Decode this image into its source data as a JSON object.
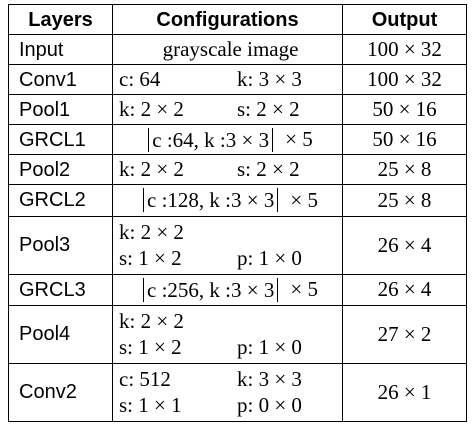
{
  "table": {
    "headers": {
      "layers": "Layers",
      "configurations": "Configurations",
      "output": "Output"
    },
    "rows": [
      {
        "layer": "Input",
        "config_full": "grayscale image",
        "output": "100 × 32"
      },
      {
        "layer": "Conv1",
        "config_a": "c: 64",
        "config_b": "k: 3 × 3",
        "output": "100 × 32"
      },
      {
        "layer": "Pool1",
        "config_a": "k: 2 × 2",
        "config_b": "s: 2 × 2",
        "output": "50 × 16"
      },
      {
        "layer": "GRCL1",
        "config_bracket": "c :64, k :3 × 3",
        "config_mult": "× 5",
        "output": "50 × 16"
      },
      {
        "layer": "Pool2",
        "config_a": "k: 2 × 2",
        "config_b": "s: 2 × 2",
        "output": "25 × 8"
      },
      {
        "layer": "GRCL2",
        "config_bracket": "c :128, k :3 × 3",
        "config_mult": "× 5",
        "output": "25 × 8"
      },
      {
        "layer": "Pool3",
        "config_line1_a": "k: 2 × 2",
        "config_line2_a": "s: 1 × 2",
        "config_line2_b": "p: 1 × 0",
        "output": "26 × 4"
      },
      {
        "layer": "GRCL3",
        "config_bracket": "c :256, k :3 × 3",
        "config_mult": "× 5",
        "output": "26 × 4"
      },
      {
        "layer": "Pool4",
        "config_line1_a": "k: 2 × 2",
        "config_line2_a": "s: 1 × 2",
        "config_line2_b": "p: 1 × 0",
        "output": "27 × 2"
      },
      {
        "layer": "Conv2",
        "config_line1_a": "c: 512",
        "config_line1_b": "k: 3 × 3",
        "config_line2_a": "s: 1 × 1",
        "config_line2_b": "p: 0 × 0",
        "output": "26 × 1"
      }
    ]
  }
}
